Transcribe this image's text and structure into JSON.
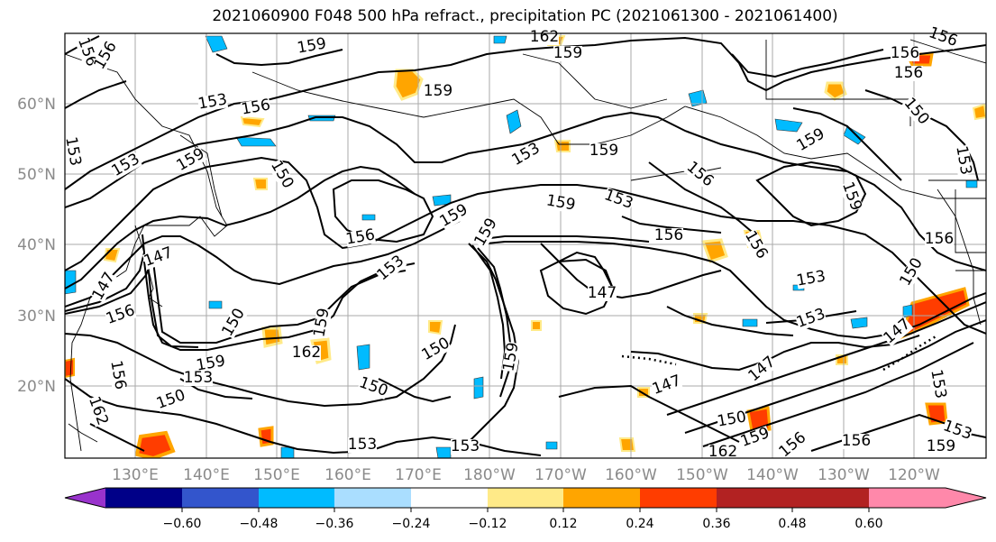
{
  "title": "2021060900 F048 500 hPa refract., precipitation PC (2021061300 - 2021061400)",
  "lat_labels": [
    "60°N",
    "50°N",
    "40°N",
    "30°N",
    "20°N"
  ],
  "lon_labels": [
    "130°E",
    "140°E",
    "150°E",
    "160°E",
    "170°E",
    "180°W",
    "170°W",
    "160°W",
    "150°W",
    "140°W",
    "130°W",
    "120°W"
  ],
  "colorbar": {
    "colors": [
      "#9933cc",
      "#000088",
      "#3355cc",
      "#00bbff",
      "#aadeff",
      "#ffffff",
      "#ffea88",
      "#ffa500",
      "#ff3d00",
      "#b22222",
      "#ff88aa"
    ],
    "ticks": [
      "−0.60",
      "−0.48",
      "−0.36",
      "−0.24",
      "−0.12",
      "0.12",
      "0.24",
      "0.36",
      "0.48",
      "0.60"
    ]
  },
  "contour_labels": [
    "156",
    "156",
    "159",
    "162",
    "159",
    "156",
    "159",
    "153",
    "156",
    "159",
    "156",
    "156",
    "153",
    "153",
    "159",
    "159",
    "150",
    "159",
    "153",
    "156",
    "159",
    "153",
    "156",
    "156",
    "147",
    "153",
    "147",
    "150",
    "156",
    "147",
    "153",
    "150",
    "162",
    "150",
    "150",
    "159",
    "159",
    "159",
    "156",
    "159",
    "162",
    "153",
    "147",
    "147",
    "159",
    "150",
    "153",
    "156",
    "150",
    "147",
    "153",
    "153",
    "153",
    "162",
    "159",
    "156",
    "156",
    "159",
    "153",
    "150",
    "156",
    "153"
  ]
}
